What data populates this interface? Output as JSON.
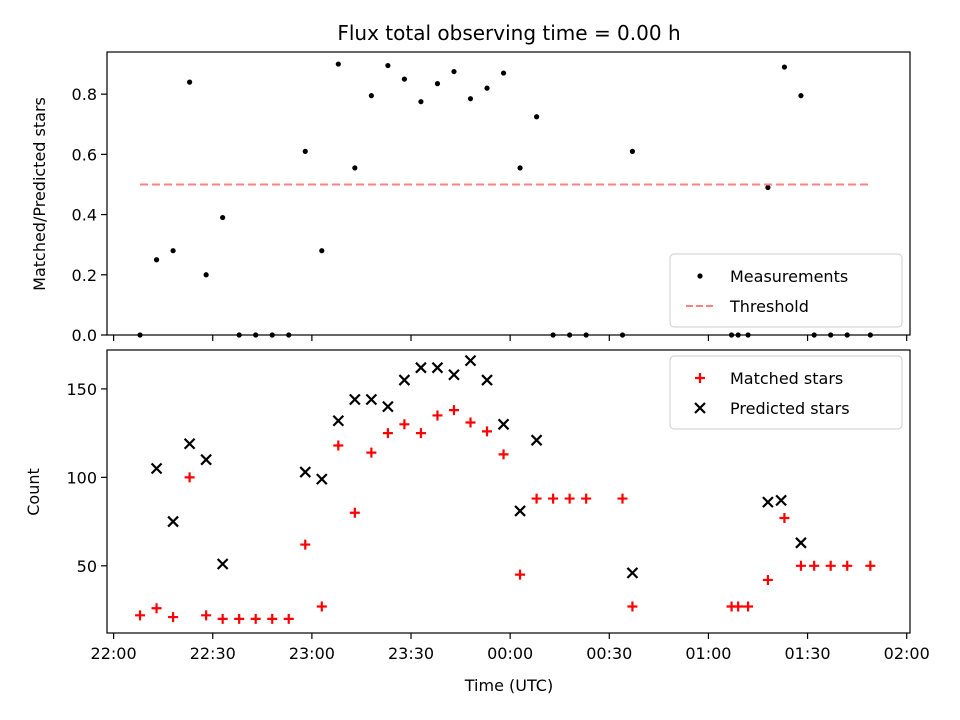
{
  "figure": {
    "title": "Flux total observing time = 0.00 h"
  },
  "chart_data": [
    {
      "type": "scatter",
      "ylabel": "Matched/Predicted stars",
      "xlim": [
        "21:58",
        "02:01"
      ],
      "ylim": [
        0,
        0.94
      ],
      "yticks": [
        0.0,
        0.2,
        0.4,
        0.6,
        0.8
      ],
      "ytick_labels": [
        "0.0",
        "0.2",
        "0.4",
        "0.6",
        "0.8"
      ],
      "legend_position": "lower-right",
      "series": [
        {
          "name": "Measurements",
          "marker": "dot",
          "color": "#000000",
          "x": [
            "22:08",
            "22:13",
            "22:18",
            "22:23",
            "22:28",
            "22:33",
            "22:38",
            "22:43",
            "22:48",
            "22:53",
            "22:58",
            "23:03",
            "23:08",
            "23:13",
            "23:18",
            "23:23",
            "23:28",
            "23:33",
            "23:38",
            "23:43",
            "23:48",
            "23:53",
            "23:58",
            "00:03",
            "00:08",
            "00:13",
            "00:18",
            "00:23",
            "00:34",
            "00:37",
            "01:07",
            "01:09",
            "01:12",
            "01:18",
            "01:23",
            "01:28",
            "01:32",
            "01:37",
            "01:42",
            "01:49"
          ],
          "y": [
            0.0,
            0.25,
            0.28,
            0.84,
            0.2,
            0.39,
            0.0,
            0.0,
            0.0,
            0.0,
            0.61,
            0.28,
            0.9,
            0.555,
            0.795,
            0.895,
            0.85,
            0.775,
            0.835,
            0.875,
            0.785,
            0.82,
            0.87,
            0.555,
            0.725,
            0.0,
            0.0,
            0.0,
            0.0,
            0.61,
            0.0,
            0.0,
            0.0,
            0.49,
            0.89,
            0.795,
            0.0,
            0.0,
            0.0,
            0.0
          ]
        },
        {
          "name": "Threshold",
          "marker": "dashed-line",
          "color": "#ff8080",
          "x": [
            "22:08",
            "01:49"
          ],
          "y": [
            0.5,
            0.5
          ]
        }
      ]
    },
    {
      "type": "scatter",
      "xlabel": "Time (UTC)",
      "ylabel": "Count",
      "xlim": [
        "21:58",
        "02:01"
      ],
      "ylim": [
        12,
        172
      ],
      "xticks": [
        "22:00",
        "22:30",
        "23:00",
        "23:30",
        "00:00",
        "00:30",
        "01:00",
        "01:30",
        "02:00"
      ],
      "yticks": [
        50,
        100,
        150
      ],
      "ytick_labels": [
        "50",
        "100",
        "150"
      ],
      "legend_position": "top-right",
      "series": [
        {
          "name": "Matched stars",
          "marker": "plus",
          "color": "#ff0000",
          "x": [
            "22:08",
            "22:13",
            "22:18",
            "22:23",
            "22:28",
            "22:33",
            "22:38",
            "22:43",
            "22:48",
            "22:53",
            "22:58",
            "23:03",
            "23:08",
            "23:13",
            "23:18",
            "23:23",
            "23:28",
            "23:33",
            "23:38",
            "23:43",
            "23:48",
            "23:53",
            "23:58",
            "00:03",
            "00:08",
            "00:13",
            "00:18",
            "00:23",
            "00:34",
            "00:37",
            "01:07",
            "01:09",
            "01:12",
            "01:18",
            "01:23",
            "01:28",
            "01:32",
            "01:37",
            "01:42",
            "01:49"
          ],
          "y": [
            22,
            26,
            21,
            100,
            22,
            20,
            20,
            20,
            20,
            20,
            62,
            27,
            118,
            80,
            114,
            125,
            130,
            125,
            135,
            138,
            131,
            126,
            113,
            45,
            88,
            88,
            88,
            88,
            88,
            27,
            27,
            27,
            27,
            42,
            77,
            50,
            50,
            50,
            50,
            50
          ]
        },
        {
          "name": "Predicted stars",
          "marker": "x",
          "color": "#000000",
          "x": [
            "22:13",
            "22:18",
            "22:23",
            "22:28",
            "22:33",
            "22:58",
            "23:03",
            "23:08",
            "23:13",
            "23:18",
            "23:23",
            "23:28",
            "23:33",
            "23:38",
            "23:43",
            "23:48",
            "23:53",
            "23:58",
            "00:03",
            "00:08",
            "00:37",
            "01:18",
            "01:22",
            "01:28"
          ],
          "y": [
            105,
            75,
            119,
            110,
            51,
            103,
            99,
            132,
            144,
            144,
            140,
            155,
            162,
            162,
            158,
            166,
            155,
            130,
            81,
            121,
            46,
            86,
            87,
            63
          ]
        }
      ]
    }
  ]
}
